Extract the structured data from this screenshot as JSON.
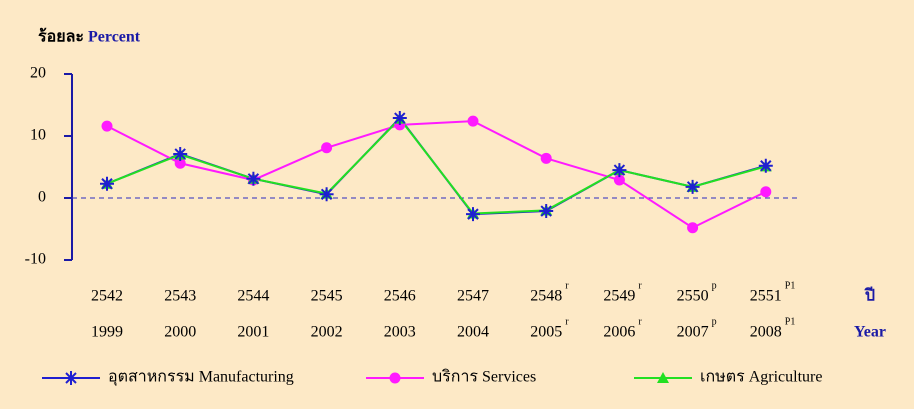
{
  "chart_data": {
    "type": "line",
    "y_label": "ร้อยละ",
    "y_label_en": "Percent",
    "x_label": "ปี",
    "x_label_en": "Year",
    "categories": [
      "2542",
      "2543",
      "2544",
      "2545",
      "2546",
      "2547",
      "2548",
      "2549",
      "2550",
      "2551"
    ],
    "categories_en": [
      "1999",
      "2000",
      "2001",
      "2002",
      "2003",
      "2004",
      "2005",
      "2006",
      "2007",
      "2008"
    ],
    "superscripts": [
      null,
      null,
      null,
      null,
      null,
      null,
      "r",
      "r",
      "p",
      "P1"
    ],
    "series": [
      {
        "name": "อุตสาหกรรม Manufacturing",
        "color": "#1f1fd0",
        "marker": "star",
        "values": [
          2.3,
          7.1,
          3.1,
          0.6,
          12.9,
          -2.6,
          -2.1,
          4.5,
          1.8,
          5.2
        ]
      },
      {
        "name": "บริการ Services",
        "color": "#ff1aff",
        "marker": "circle",
        "values": [
          11.6,
          5.6,
          2.9,
          8.1,
          11.8,
          12.4,
          6.4,
          2.9,
          -4.8,
          1.0
        ]
      },
      {
        "name": "เกษตร Agriculture",
        "color": "#22e022",
        "marker": "triangle",
        "values": [
          2.3,
          7.0,
          3.1,
          0.7,
          12.8,
          -2.5,
          -2.0,
          4.5,
          1.8,
          5.1
        ]
      }
    ],
    "ylim": [
      -10,
      20
    ],
    "yticks": [
      -10,
      0,
      10,
      20
    ],
    "zero_line": true
  }
}
